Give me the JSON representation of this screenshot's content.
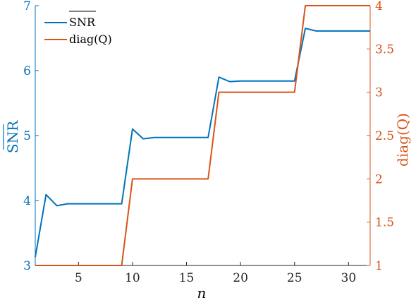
{
  "chart_data": {
    "type": "line",
    "xlabel": "n",
    "ylabel_left": "SNR",
    "ylabel_right": "diag(Q)",
    "xlim": [
      1,
      32
    ],
    "ylim_left": [
      3,
      7
    ],
    "ylim_right": [
      1,
      4
    ],
    "x_ticks": [
      5,
      10,
      15,
      20,
      25,
      30
    ],
    "y_left_ticks": [
      3,
      4,
      5,
      6,
      7
    ],
    "y_right_ticks": [
      1,
      1.5,
      2,
      2.5,
      3,
      3.5,
      4
    ],
    "legend_position": "top-left",
    "grid": false,
    "series": [
      {
        "name": "SNR",
        "axis": "left",
        "color": "#0072BD",
        "x": [
          1,
          2,
          3,
          4,
          5,
          6,
          7,
          8,
          9,
          10,
          11,
          12,
          13,
          14,
          15,
          16,
          17,
          18,
          19,
          20,
          21,
          22,
          23,
          24,
          25,
          26,
          27,
          28,
          29,
          30,
          31,
          32
        ],
        "values": [
          3.13,
          4.09,
          3.92,
          3.95,
          3.95,
          3.95,
          3.95,
          3.95,
          3.95,
          5.1,
          4.95,
          4.97,
          4.97,
          4.97,
          4.97,
          4.97,
          4.97,
          5.9,
          5.83,
          5.84,
          5.84,
          5.84,
          5.84,
          5.84,
          5.84,
          6.65,
          6.61,
          6.61,
          6.61,
          6.61,
          6.61,
          6.61
        ]
      },
      {
        "name": "diag(Q)",
        "axis": "right",
        "color": "#D95319",
        "x": [
          1,
          2,
          3,
          4,
          5,
          6,
          7,
          8,
          9,
          10,
          11,
          12,
          13,
          14,
          15,
          16,
          17,
          18,
          19,
          20,
          21,
          22,
          23,
          24,
          25,
          26,
          27,
          28,
          29,
          30,
          31,
          32
        ],
        "values": [
          1,
          1,
          1,
          1,
          1,
          1,
          1,
          1,
          1,
          2,
          2,
          2,
          2,
          2,
          2,
          2,
          2,
          3,
          3,
          3,
          3,
          3,
          3,
          3,
          3,
          4,
          4,
          4,
          4,
          4,
          4,
          4
        ]
      }
    ]
  },
  "legend": {
    "snr_label": "SNR",
    "q_label": "diag(Q)"
  },
  "colors": {
    "left_axis": "#0072BD",
    "right_axis": "#D95319"
  }
}
